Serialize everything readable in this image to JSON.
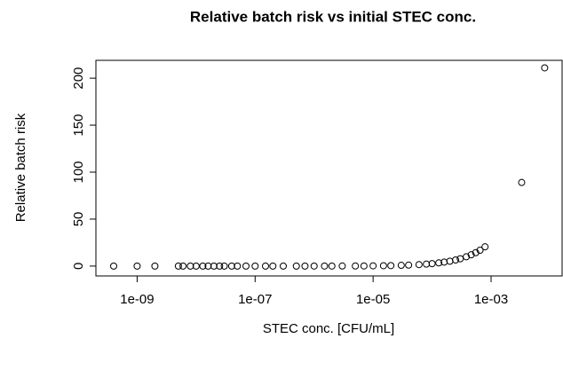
{
  "chart_data": {
    "type": "scatter",
    "title": "Relative batch risk vs initial STEC conc.",
    "x_label": "STEC conc.  [CFU/mL]",
    "y_label": "Relative batch risk",
    "x_log": true,
    "color": "#000000",
    "x": [
      4e-10,
      1e-09,
      2e-09,
      5e-09,
      6e-09,
      8e-09,
      1e-08,
      1.3e-08,
      1.6e-08,
      2e-08,
      2.5e-08,
      3e-08,
      4e-08,
      5e-08,
      7e-08,
      1e-07,
      1.5e-07,
      2e-07,
      3e-07,
      5e-07,
      7e-07,
      1e-06,
      1.5e-06,
      2e-06,
      3e-06,
      5e-06,
      7e-06,
      1e-05,
      1.5e-05,
      2e-05,
      3e-05,
      4e-05,
      6e-05,
      8e-05,
      0.0001,
      0.00013,
      0.00016,
      0.0002,
      0.00025,
      0.0003,
      0.00038,
      0.00046,
      0.00055,
      0.00065,
      0.00079,
      0.0033,
      0.0081
    ],
    "values": [
      0,
      0,
      0,
      0,
      0,
      0,
      0,
      0,
      0,
      0,
      0,
      0,
      0,
      0,
      0,
      0,
      0,
      0.01,
      0.01,
      0.01,
      0.02,
      0.03,
      0.04,
      0.05,
      0.08,
      0.13,
      0.18,
      0.26,
      0.39,
      0.52,
      0.78,
      1.04,
      1.56,
      2.08,
      2.6,
      3.4,
      4.2,
      5.2,
      6.5,
      7.8,
      9.9,
      12,
      14.3,
      16.9,
      20.5,
      89,
      211
    ],
    "xlim": [
      2e-10,
      0.016
    ],
    "ylim": [
      -10.5,
      219
    ],
    "xticks": [
      {
        "value": 1e-09,
        "label": "1e-09"
      },
      {
        "value": 1e-07,
        "label": "1e-07"
      },
      {
        "value": 1e-05,
        "label": "1e-05"
      },
      {
        "value": 0.001,
        "label": "1e-03"
      }
    ],
    "yticks": [
      0,
      50,
      100,
      150,
      200
    ]
  }
}
